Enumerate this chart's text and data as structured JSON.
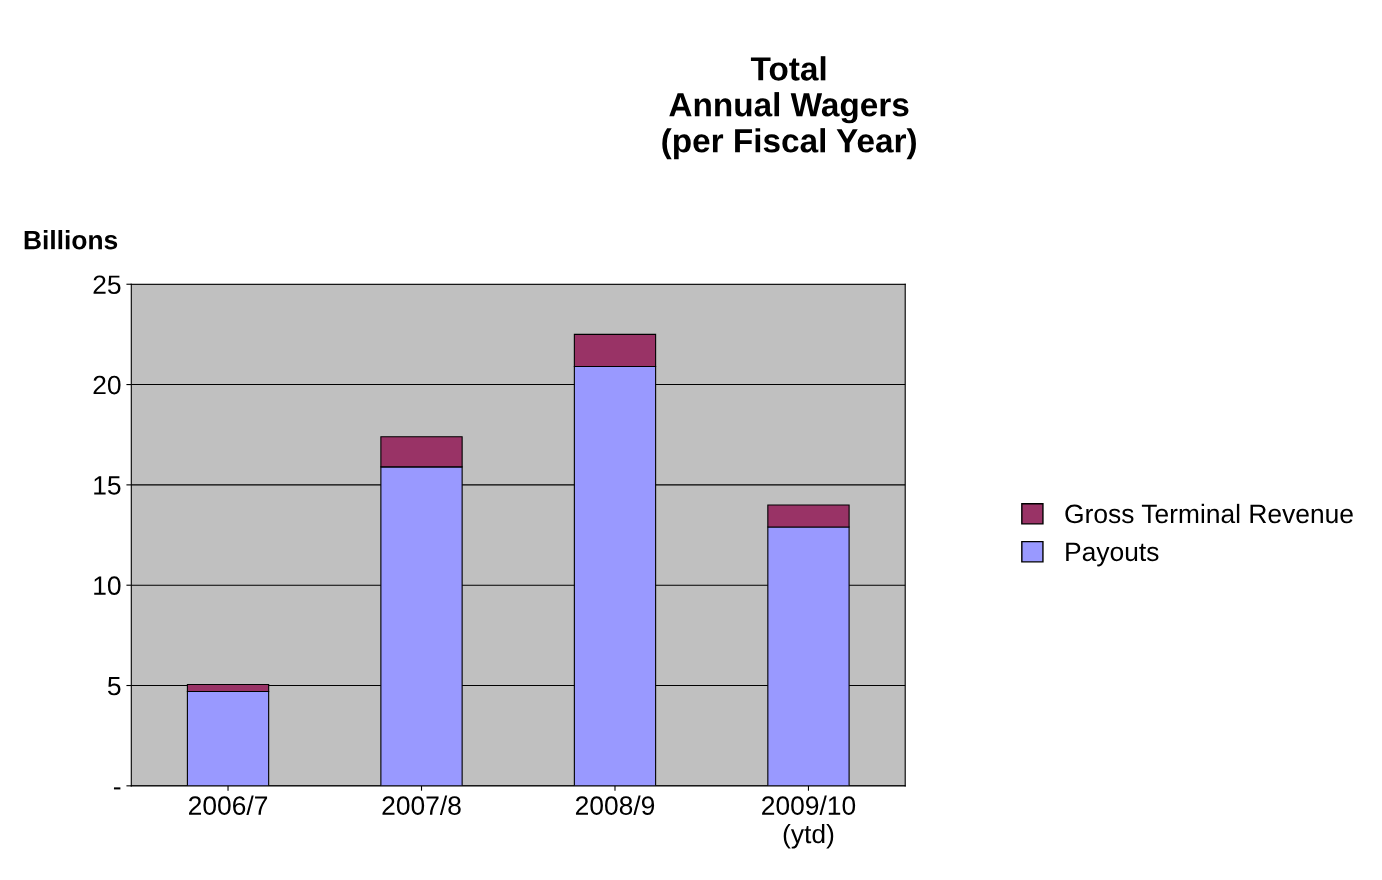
{
  "chart_data": {
    "type": "bar",
    "title": "Total\nAnnual Wagers\n(per Fiscal Year)",
    "ylabel": "Billions",
    "categories": [
      "2006/7",
      "2007/8",
      "2008/9",
      "2009/10\n(ytd)"
    ],
    "stacked": true,
    "series": [
      {
        "name": "Payouts",
        "color": "#9999ff",
        "values": [
          4.7,
          15.9,
          20.9,
          12.9
        ]
      },
      {
        "name": "Gross Terminal Revenue",
        "color": "#993366",
        "values": [
          0.35,
          1.5,
          1.6,
          1.1
        ]
      }
    ],
    "ylim": [
      0,
      25
    ],
    "yticks": [
      {
        "value": 0,
        "label": "-"
      },
      5,
      10,
      15,
      20,
      25
    ],
    "grid": "y",
    "legend": "right"
  }
}
